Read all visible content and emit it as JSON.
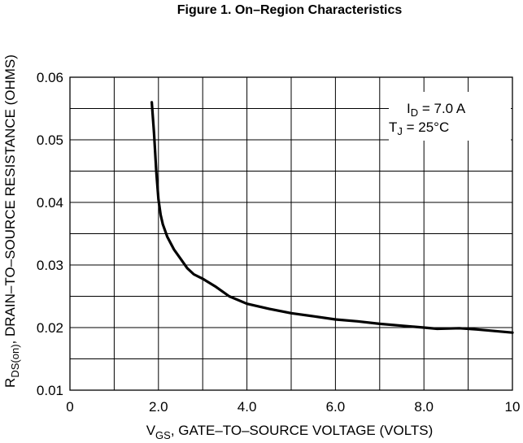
{
  "chart_data": {
    "type": "line",
    "title": "Figure 1. On–Region Characteristics",
    "xlabel": {
      "main": "V",
      "sub": "GS",
      "rest": ", GATE–TO–SOURCE VOLTAGE (VOLTS)"
    },
    "ylabel": {
      "main": "R",
      "sub": "DS(on)",
      "rest": ", DRAIN–TO–SOURCE RESISTANCE (OHMS)"
    },
    "xlim": [
      0,
      10
    ],
    "ylim": [
      0.01,
      0.06
    ],
    "x_ticks": [
      0,
      2,
      4,
      6,
      8,
      10
    ],
    "x_tick_labels": [
      "0",
      "2.0",
      "4.0",
      "6.0",
      "8.0",
      "10"
    ],
    "y_ticks": [
      0.01,
      0.02,
      0.03,
      0.04,
      0.05,
      0.06
    ],
    "y_tick_labels": [
      "0.01",
      "0.02",
      "0.03",
      "0.04",
      "0.05",
      "0.06"
    ],
    "grid": true,
    "annotations": [
      {
        "main": "I",
        "sub": "D",
        "rest": " = 7.0 A"
      },
      {
        "main": "T",
        "sub": "J",
        "rest": " =  25°C"
      }
    ],
    "series": [
      {
        "x": [
          1.85,
          1.9,
          1.95,
          2.0,
          2.05,
          2.1,
          2.2,
          2.35,
          2.5,
          2.65,
          2.8,
          3.0,
          3.3,
          3.6,
          4.0,
          4.5,
          5.0,
          5.5,
          6.0,
          6.5,
          7.0,
          7.5,
          8.0,
          8.3,
          8.8,
          9.2,
          10.0
        ],
        "values": [
          0.056,
          0.051,
          0.045,
          0.0405,
          0.038,
          0.0365,
          0.0345,
          0.0325,
          0.031,
          0.0295,
          0.0285,
          0.0278,
          0.0265,
          0.025,
          0.0238,
          0.023,
          0.0223,
          0.0218,
          0.0213,
          0.021,
          0.0206,
          0.0203,
          0.02,
          0.0198,
          0.0199,
          0.0197,
          0.0192
        ]
      }
    ]
  }
}
